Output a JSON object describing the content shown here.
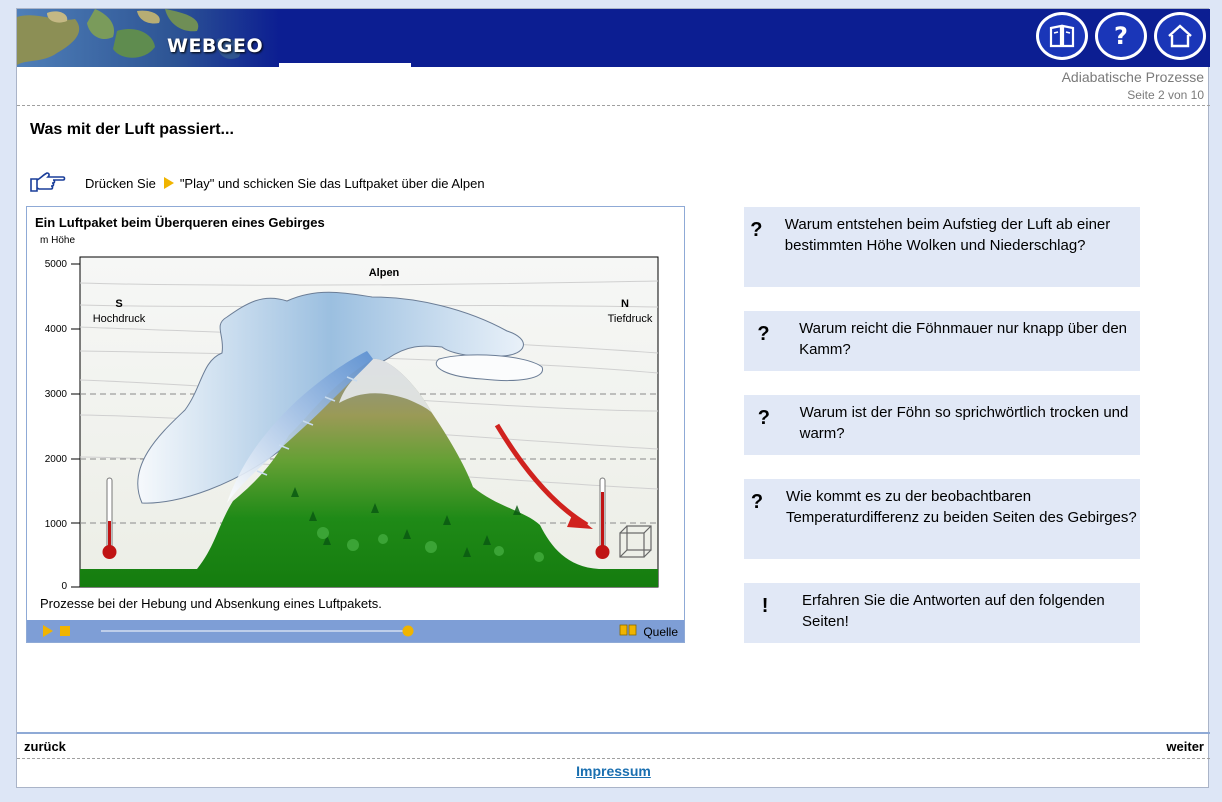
{
  "header": {
    "logo": "WEBGEO",
    "icons": [
      "book-icon",
      "help-icon",
      "home-icon"
    ]
  },
  "breadcrumb": {
    "title": "Adiabatische Prozesse",
    "page": "Seite 2 von 10"
  },
  "page_title": "Was mit der Luft passiert...",
  "instruction": {
    "before": "Drücken Sie",
    "after": "\"Play\" und schicken Sie das Luftpaket über die Alpen"
  },
  "animation": {
    "title": "Ein Luftpaket beim Überqueren eines Gebirges",
    "y_axis_label": "m Höhe",
    "y_ticks": [
      "5000",
      "4000",
      "3000",
      "2000",
      "1000",
      "0"
    ],
    "mountain_label": "Alpen",
    "south_label": "S",
    "south_pressure": "Hochdruck",
    "north_label": "N",
    "north_pressure": "Tiefdruck",
    "caption": "Prozesse bei der Hebung und Absenkung eines Luftpakets.",
    "quelle_label": "Quelle",
    "slider_progress": 1.0
  },
  "questions": [
    {
      "mark": "?",
      "text": "Warum entstehen beim Aufstieg der Luft ab einer bestimmten Höhe Wolken und Niederschlag?"
    },
    {
      "mark": "?",
      "text": "Warum reicht die Föhnmauer nur knapp über den Kamm?"
    },
    {
      "mark": "?",
      "text": "Warum ist der Föhn so sprichwörtlich trocken und warm?"
    },
    {
      "mark": "?",
      "text": "Wie kommt es zu der beobachtbaren Temperaturdifferenz zu beiden Seiten des Gebirges?"
    },
    {
      "mark": "!",
      "text": "Erfahren Sie die Antworten auf den folgenden Seiten!"
    }
  ],
  "nav": {
    "back": "zurück",
    "next": "weiter"
  },
  "footer": {
    "impressum": "Impressum"
  },
  "colors": {
    "header_blue": "#0c1e92",
    "panel_border": "#8faad6",
    "question_bg": "#e1e8f6",
    "link": "#1a6fb0"
  }
}
